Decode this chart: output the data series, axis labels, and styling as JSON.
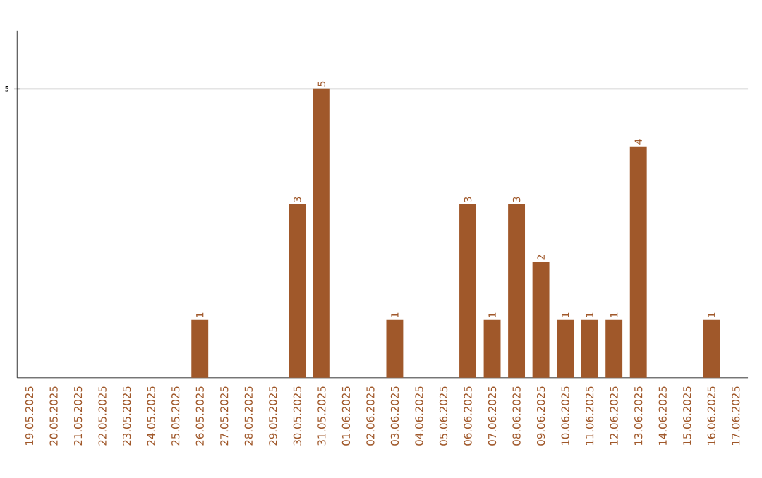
{
  "chart_data": {
    "type": "bar",
    "categories": [
      "19.05.2025",
      "20.05.2025",
      "21.05.2025",
      "22.05.2025",
      "23.05.2025",
      "24.05.2025",
      "25.05.2025",
      "26.05.2025",
      "27.05.2025",
      "28.05.2025",
      "29.05.2025",
      "30.05.2025",
      "31.05.2025",
      "01.06.2025",
      "02.06.2025",
      "03.06.2025",
      "04.06.2025",
      "05.06.2025",
      "06.06.2025",
      "07.06.2025",
      "08.06.2025",
      "09.06.2025",
      "10.06.2025",
      "11.06.2025",
      "12.06.2025",
      "13.06.2025",
      "14.06.2025",
      "15.06.2025",
      "16.06.2025",
      "17.06.2025"
    ],
    "values": [
      0,
      0,
      0,
      0,
      0,
      0,
      0,
      1,
      0,
      0,
      0,
      3,
      5,
      0,
      0,
      1,
      0,
      0,
      3,
      1,
      3,
      2,
      1,
      1,
      1,
      4,
      0,
      0,
      1,
      0
    ],
    "value_labels": [
      null,
      null,
      null,
      null,
      null,
      null,
      null,
      "1",
      null,
      null,
      null,
      "3",
      "5",
      null,
      null,
      "1",
      null,
      null,
      "3",
      "1",
      "3",
      "2",
      "1",
      "1",
      "1",
      "4",
      null,
      null,
      "1",
      null
    ],
    "color": "#a0582a",
    "ylim": [
      0,
      6
    ],
    "yticks": [
      5
    ],
    "grid": "y"
  }
}
